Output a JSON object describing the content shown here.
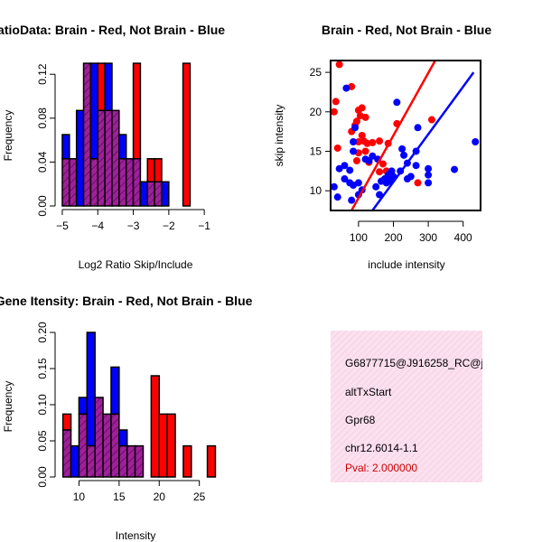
{
  "chart_data": [
    {
      "id": "ratio-hist",
      "type": "histogram",
      "title": "RatioData: Brain - Red, Not Brain - Blue",
      "xlabel": "Log2 Ratio Skip/Include",
      "ylabel": "Frequency",
      "xlim": [
        -5.05,
        -0.8
      ],
      "ylim": [
        0,
        0.135
      ],
      "xticks": [
        -5,
        -4,
        -3,
        -2,
        -1
      ],
      "yticks": [
        0.0,
        0.04,
        0.08,
        0.12
      ],
      "ytick_labels": [
        "0.00",
        "0.04",
        "0.08",
        "0.12"
      ],
      "bin_start": -5.0,
      "bin_width": 0.2,
      "series": [
        {
          "name": "Not Brain",
          "color": "#0000ff",
          "values": [
            0.065,
            0.043,
            0.087,
            0.13,
            0.13,
            0.087,
            0.13,
            0.087,
            0.065,
            0.043,
            0.043,
            0.022,
            0.022,
            0.022,
            0.022,
            0.0,
            0.0,
            0.0
          ]
        },
        {
          "name": "Brain",
          "color": "#ff0000",
          "values": [
            0.043,
            0.043,
            0.0,
            0.13,
            0.043,
            0.13,
            0.087,
            0.087,
            0.043,
            0.043,
            0.13,
            0.0,
            0.043,
            0.043,
            0.0,
            0.0,
            0.0,
            0.13
          ]
        }
      ],
      "overlap_color": "#8b1a8b"
    },
    {
      "id": "scatter",
      "type": "scatter",
      "title": "Brain - Red, Not Brain - Blue",
      "xlabel": "include intensity",
      "ylabel": "skip intensity",
      "xlim": [
        20,
        450
      ],
      "ylim": [
        7.5,
        26.5
      ],
      "xticks": [
        100,
        200,
        300,
        400
      ],
      "yticks": [
        10,
        15,
        20,
        25
      ],
      "series": [
        {
          "name": "Brain",
          "color": "#ff0000",
          "points": [
            [
              45,
              26
            ],
            [
              35,
              21.3
            ],
            [
              30,
              20
            ],
            [
              80,
              23.2
            ],
            [
              100,
              20.2
            ],
            [
              110,
              20.5
            ],
            [
              105,
              19.5
            ],
            [
              120,
              19.3
            ],
            [
              95,
              18.8
            ],
            [
              90,
              18.3
            ],
            [
              80,
              17.5
            ],
            [
              110,
              17
            ],
            [
              115,
              16.3
            ],
            [
              125,
              16
            ],
            [
              140,
              16.1
            ],
            [
              100,
              16.2
            ],
            [
              40,
              15.4
            ],
            [
              100,
              14.8
            ],
            [
              120,
              15
            ],
            [
              95,
              13.8
            ],
            [
              130,
              13.6
            ],
            [
              160,
              16.3
            ],
            [
              170,
              13.4
            ],
            [
              185,
              16
            ],
            [
              160,
              12.4
            ],
            [
              180,
              12.5
            ],
            [
              210,
              18.5
            ],
            [
              270,
              11
            ],
            [
              310,
              19
            ]
          ],
          "fit": [
            [
              80,
              7.5
            ],
            [
              320,
              26.5
            ]
          ]
        },
        {
          "name": "Not Brain",
          "color": "#0000ff",
          "points": [
            [
              65,
              23
            ],
            [
              30,
              10.5
            ],
            [
              45,
              12.8
            ],
            [
              60,
              13.2
            ],
            [
              75,
              12.6
            ],
            [
              60,
              11.5
            ],
            [
              75,
              11
            ],
            [
              85,
              16.2
            ],
            [
              85,
              15
            ],
            [
              90,
              18
            ],
            [
              85,
              10.7
            ],
            [
              100,
              11
            ],
            [
              100,
              9.5
            ],
            [
              110,
              10.1
            ],
            [
              120,
              14
            ],
            [
              130,
              13.8
            ],
            [
              140,
              14.4
            ],
            [
              155,
              14
            ],
            [
              150,
              10.5
            ],
            [
              160,
              9.5
            ],
            [
              165,
              11.2
            ],
            [
              175,
              11.5
            ],
            [
              180,
              11
            ],
            [
              185,
              12
            ],
            [
              190,
              11.2
            ],
            [
              195,
              12.5
            ],
            [
              200,
              11.8
            ],
            [
              210,
              21.2
            ],
            [
              220,
              12.5
            ],
            [
              225,
              15.3
            ],
            [
              230,
              14.5
            ],
            [
              240,
              13.5
            ],
            [
              240,
              11.5
            ],
            [
              250,
              11.8
            ],
            [
              265,
              13.2
            ],
            [
              270,
              18
            ],
            [
              265,
              15
            ],
            [
              300,
              12.8
            ],
            [
              300,
              12
            ],
            [
              300,
              11
            ],
            [
              375,
              12.7
            ],
            [
              435,
              16.2
            ],
            [
              40,
              9.2
            ],
            [
              80,
              8.8
            ]
          ],
          "fit": [
            [
              140,
              7.5
            ],
            [
              430,
              25
            ]
          ]
        }
      ]
    },
    {
      "id": "intensity-hist",
      "type": "histogram",
      "title": "Exon Gene Itensity: Brain - Red, Not Brain - Blue",
      "xlabel": "Intensity",
      "ylabel": "Frequency",
      "xlim": [
        7.7,
        26.5
      ],
      "ylim": [
        0,
        0.205
      ],
      "xticks": [
        10,
        15,
        20,
        25
      ],
      "yticks": [
        0.0,
        0.05,
        0.1,
        0.15,
        0.2
      ],
      "ytick_labels": [
        "0.00",
        "0.05",
        "0.10",
        "0.15",
        "0.20"
      ],
      "bin_start": 8.0,
      "bin_width": 1.0,
      "series": [
        {
          "name": "Not Brain",
          "color": "#0000ff",
          "values": [
            0.065,
            0.043,
            0.11,
            0.2,
            0.11,
            0.087,
            0.152,
            0.065,
            0.043,
            0.043,
            0.0,
            0.0,
            0.0,
            0.0,
            0.0,
            0.0,
            0.0,
            0.0
          ]
        },
        {
          "name": "Brain",
          "color": "#ff0000",
          "values": [
            0.087,
            0.0,
            0.087,
            0.043,
            0.11,
            0.087,
            0.087,
            0.043,
            0.043,
            0.043,
            0.0,
            0.14,
            0.087,
            0.087,
            0.0,
            0.043,
            0.0,
            0.0,
            0.043
          ]
        }
      ],
      "overlap_color": "#8b1a8b"
    }
  ],
  "info_box": {
    "lines": [
      "G6877715@J916258_RC@j",
      "altTxStart",
      "Gpr68",
      "chr12.6014-1.1"
    ],
    "pval": "Pval: 2.000000",
    "bg_color": "#fbe0ee",
    "pval_color": "#cc0000"
  }
}
